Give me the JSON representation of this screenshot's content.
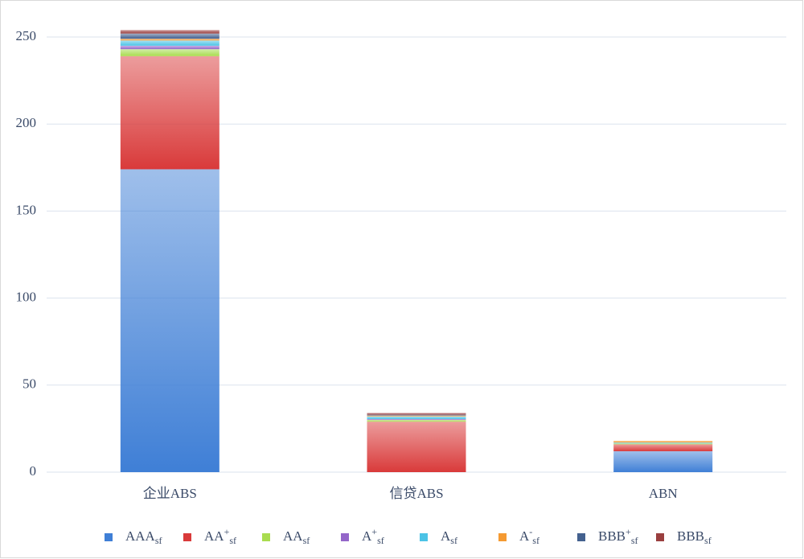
{
  "chart_data": {
    "type": "stacked_bar",
    "categories": [
      "企业ABS",
      "信贷ABS",
      "ABN"
    ],
    "series": [
      {
        "name": "AAAsf",
        "color": "#3f7fd6",
        "values": [
          174,
          0,
          12
        ]
      },
      {
        "name": "AA+sf",
        "color": "#d93a3a",
        "values": [
          65,
          29,
          4
        ]
      },
      {
        "name": "AAsf",
        "color": "#a9dc4f",
        "values": [
          4,
          1,
          0.5
        ]
      },
      {
        "name": "A+sf",
        "color": "#9466c9",
        "values": [
          2,
          0.5,
          0
        ]
      },
      {
        "name": "Asf",
        "color": "#4cc3e6",
        "values": [
          3,
          1.5,
          0.5
        ]
      },
      {
        "name": "A-sf",
        "color": "#f59a32",
        "values": [
          1,
          0.5,
          1
        ]
      },
      {
        "name": "BBB+sf",
        "color": "#44618f",
        "values": [
          3,
          0.5,
          0
        ]
      },
      {
        "name": "BBBsf",
        "color": "#9a3f3f",
        "values": [
          2,
          1,
          0
        ]
      }
    ],
    "ylim": [
      0,
      250
    ],
    "yticks": [
      0,
      50,
      100,
      150,
      200,
      250
    ],
    "grid": true
  }
}
